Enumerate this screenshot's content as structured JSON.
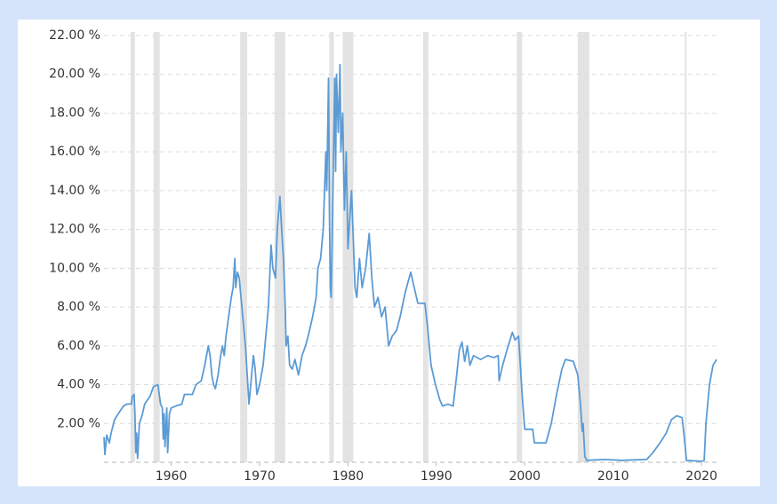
{
  "chart_data": {
    "type": "line",
    "xlim": [
      1952.4,
      2022
    ],
    "ylim": [
      0,
      22
    ],
    "xticks": [
      1960,
      1970,
      1980,
      1990,
      2000,
      2010,
      2020
    ],
    "yticks": [
      {
        "value": 2,
        "label": "2.00 %"
      },
      {
        "value": 4,
        "label": "4.00 %"
      },
      {
        "value": 6,
        "label": "6.00 %"
      },
      {
        "value": 8,
        "label": "8.00 %"
      },
      {
        "value": 10,
        "label": "10.00 %"
      },
      {
        "value": 12,
        "label": "12.00 %"
      },
      {
        "value": 14,
        "label": "14.00 %"
      },
      {
        "value": 16,
        "label": "16.00 %"
      },
      {
        "value": 18,
        "label": "18.00 %"
      },
      {
        "value": 20,
        "label": "20.00 %"
      },
      {
        "value": 22,
        "label": "22.00 %"
      }
    ],
    "grid": true,
    "recession_color": "#e3e3e3",
    "recessions": [
      [
        1955.4,
        1955.9
      ],
      [
        1958.0,
        1958.7
      ],
      [
        1967.8,
        1968.6
      ],
      [
        1971.7,
        1972.9
      ],
      [
        1977.9,
        1978.4
      ],
      [
        1979.4,
        1980.6
      ],
      [
        1988.5,
        1989.1
      ],
      [
        1999.1,
        1999.7
      ],
      [
        2006.0,
        2007.3
      ],
      [
        2018.1,
        2018.3
      ]
    ],
    "series": [
      {
        "color": "#5b9bd5",
        "x": [
          1952.4,
          1952.5,
          1952.7,
          1953.0,
          1953.2,
          1953.6,
          1954.0,
          1954.6,
          1955.0,
          1955.5,
          1955.6,
          1955.8,
          1955.9,
          1956.0,
          1956.1,
          1956.2,
          1956.4,
          1956.7,
          1957.0,
          1957.6,
          1958.0,
          1958.5,
          1958.8,
          1959.0,
          1959.1,
          1959.2,
          1959.3,
          1959.5,
          1959.6,
          1959.8,
          1960.0,
          1960.5,
          1961.2,
          1961.5,
          1962.4,
          1962.8,
          1963.4,
          1963.8,
          1964.2,
          1964.4,
          1964.6,
          1964.8,
          1965.0,
          1965.3,
          1965.6,
          1965.8,
          1966.0,
          1966.2,
          1966.5,
          1966.8,
          1967.0,
          1967.2,
          1967.3,
          1967.5,
          1967.7,
          1967.9,
          1968.1,
          1968.4,
          1968.6,
          1968.8,
          1969.0,
          1969.3,
          1969.5,
          1969.7,
          1970.0,
          1970.4,
          1970.7,
          1971.0,
          1971.3,
          1971.5,
          1971.8,
          1972.0,
          1972.3,
          1972.5,
          1972.7,
          1972.9,
          1973.0,
          1973.2,
          1973.4,
          1973.7,
          1974.0,
          1974.4,
          1974.8,
          1975.2,
          1975.6,
          1976.0,
          1976.4,
          1976.6,
          1976.9,
          1977.2,
          1977.5,
          1977.6,
          1977.8,
          1977.9,
          1978.0,
          1978.1,
          1978.3,
          1978.5,
          1978.6,
          1978.7,
          1978.9,
          1979.1,
          1979.2,
          1979.4,
          1979.6,
          1979.8,
          1980.0,
          1980.4,
          1980.8,
          1981.0,
          1981.3,
          1981.6,
          1982.0,
          1982.4,
          1982.7,
          1983.0,
          1983.4,
          1983.8,
          1984.2,
          1984.6,
          1985.0,
          1985.5,
          1985.9,
          1986.5,
          1987.1,
          1987.5,
          1987.9,
          1988.7,
          1989.0,
          1989.4,
          1989.9,
          1990.4,
          1990.7,
          1991.3,
          1991.9,
          1992.3,
          1992.6,
          1992.9,
          1993.2,
          1993.5,
          1993.8,
          1994.2,
          1995.0,
          1995.8,
          1996.5,
          1997.0,
          1997.1,
          1997.5,
          1998.0,
          1998.6,
          1998.9,
          1999.3,
          1999.7,
          2000.0,
          2000.9,
          2001.1,
          2002.4,
          2003.0,
          2003.6,
          2004.2,
          2004.6,
          2005.5,
          2006.0,
          2006.3,
          2006.5,
          2006.6,
          2006.8,
          2007.0,
          2009.0,
          2011.0,
          2013.8,
          2014.5,
          2015.3,
          2016.0,
          2016.6,
          2017.2,
          2017.8,
          2018.0,
          2018.3,
          2020.0,
          2020.3,
          2020.5,
          2020.7,
          2020.9,
          2021.3,
          2021.7
        ],
        "values": [
          1.3,
          0.4,
          1.4,
          1.0,
          1.5,
          2.2,
          2.5,
          2.9,
          3.0,
          3.0,
          3.4,
          3.5,
          2.5,
          0.5,
          1.5,
          0.2,
          2.0,
          2.4,
          3.0,
          3.4,
          3.9,
          4.0,
          3.0,
          2.8,
          1.2,
          2.5,
          0.8,
          2.8,
          0.5,
          2.5,
          2.8,
          2.9,
          3.0,
          3.5,
          3.5,
          4.0,
          4.2,
          5.0,
          6.0,
          5.5,
          4.5,
          4.0,
          3.8,
          4.5,
          5.5,
          6.0,
          5.5,
          6.5,
          7.5,
          8.5,
          9.0,
          10.5,
          9.0,
          9.8,
          9.5,
          8.5,
          7.5,
          6.0,
          4.5,
          3.0,
          4.0,
          5.5,
          4.8,
          3.5,
          4.0,
          5.0,
          6.5,
          8.0,
          11.2,
          10.0,
          9.5,
          12.0,
          13.7,
          12.0,
          10.5,
          8.0,
          6.0,
          6.5,
          5.0,
          4.8,
          5.3,
          4.5,
          5.5,
          6.0,
          6.7,
          7.5,
          8.5,
          10.0,
          10.5,
          12.0,
          16.0,
          14.0,
          19.8,
          13.0,
          9.0,
          8.5,
          14.0,
          19.8,
          15.0,
          20.0,
          17.0,
          20.5,
          16.0,
          18.0,
          13.0,
          16.0,
          11.0,
          14.0,
          9.0,
          8.5,
          10.5,
          9.0,
          10.0,
          11.8,
          9.5,
          8.0,
          8.5,
          7.5,
          8.0,
          6.0,
          6.5,
          6.8,
          7.5,
          8.8,
          9.8,
          9.0,
          8.2,
          8.2,
          7.0,
          5.0,
          4.0,
          3.2,
          2.9,
          3.0,
          2.9,
          4.5,
          5.8,
          6.2,
          5.2,
          6.0,
          5.0,
          5.5,
          5.3,
          5.5,
          5.4,
          5.5,
          4.2,
          5.0,
          5.8,
          6.7,
          6.3,
          6.5,
          3.5,
          1.7,
          1.7,
          1.0,
          1.0,
          2.0,
          3.5,
          4.8,
          5.3,
          5.2,
          4.5,
          3.0,
          1.6,
          2.0,
          0.3,
          0.1,
          0.15,
          0.1,
          0.15,
          0.5,
          1.0,
          1.5,
          2.2,
          2.4,
          2.3,
          1.5,
          0.1,
          0.05,
          0.1,
          2.0,
          3.0,
          4.0,
          5.0,
          5.3
        ]
      }
    ]
  }
}
